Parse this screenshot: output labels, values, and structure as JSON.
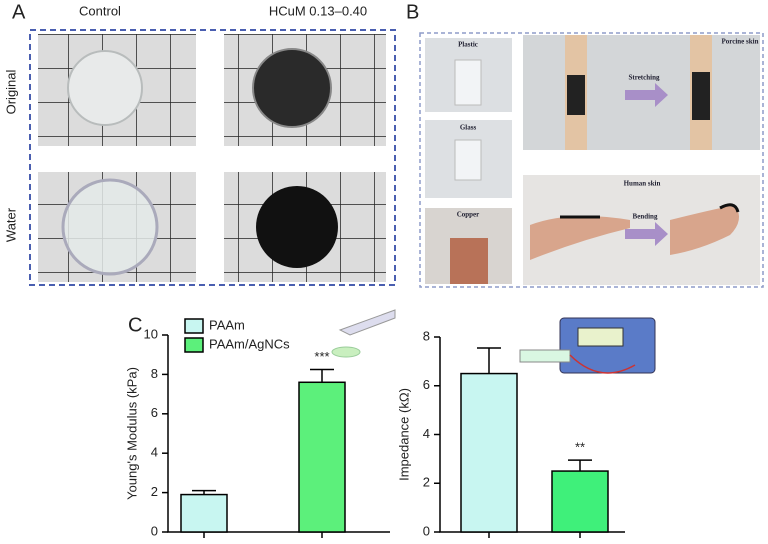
{
  "panels": {
    "a": {
      "label": "A",
      "columns": [
        "Control",
        "HCuM 0.13–0.40"
      ],
      "rows": [
        "Original",
        "Water"
      ]
    },
    "b": {
      "label": "B",
      "photos": [
        "Plastic",
        "Glass",
        "Copper",
        "Porcine skin",
        "Stretching",
        "Human skin",
        "Bending"
      ]
    },
    "c": {
      "label": "C"
    }
  },
  "chart_data": [
    {
      "type": "bar",
      "y_label": "Young's Modulus (kPa)",
      "ylim": [
        0,
        10
      ],
      "yticks": [
        0,
        2,
        4,
        6,
        8,
        10
      ],
      "series": [
        {
          "name": "PAAm",
          "color": "#c8f6f1",
          "values": [
            1.9
          ],
          "errors": [
            0.2
          ]
        },
        {
          "name": "PAAm/AgNCs",
          "color": "#5cf07b",
          "values": [
            7.6
          ],
          "errors": [
            0.65
          ]
        }
      ],
      "annotations": [
        null,
        "***"
      ]
    },
    {
      "type": "bar",
      "y_label": "Impedance (kΩ)",
      "ylim": [
        0,
        8
      ],
      "yticks": [
        0,
        2,
        4,
        6,
        8
      ],
      "values": [
        6.5,
        2.5
      ],
      "errors": [
        1.05,
        0.45
      ],
      "colors": [
        "#c8f6f1",
        "#3ff07a"
      ],
      "annotations": [
        null,
        "**"
      ]
    }
  ]
}
